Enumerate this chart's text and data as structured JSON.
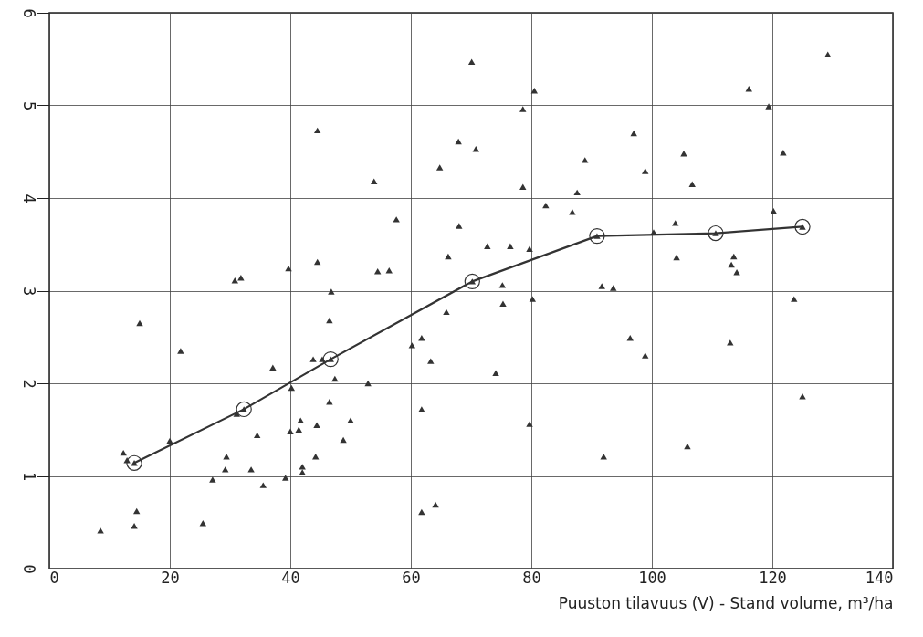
{
  "chart_data": {
    "type": "scatter",
    "xlabel": "Puuston tilavuus (V) - Stand volume, m³/ha",
    "xlim": [
      0,
      140
    ],
    "xticks": [
      0,
      20,
      40,
      60,
      80,
      100,
      120,
      140
    ],
    "ylim": [
      0,
      6
    ],
    "yticks": [
      0,
      1,
      2,
      3,
      4,
      5,
      6
    ],
    "grid": true,
    "series": [
      {
        "marker": "triangle",
        "color": "#333333",
        "x": [
          8.5,
          12.3,
          12.9,
          14.1,
          14.5,
          14.1,
          15,
          20,
          21.8,
          25.5,
          27.1,
          29.4,
          29.2,
          30.8,
          31.8,
          31.1,
          32.3,
          33.5,
          34.5,
          35.5,
          37.1,
          39.2,
          39.7,
          40.2,
          40,
          41.4,
          41.7,
          42,
          42,
          43.8,
          44.4,
          44.5,
          44.5,
          44.2,
          45.3,
          46.7,
          46.5,
          46.5,
          46.8,
          47.4,
          48.8,
          50,
          52.9,
          53.9,
          54.5,
          56.4,
          57.6,
          60.2,
          61.8,
          61.8,
          61.8,
          63.3,
          64.1,
          64.8,
          65.9,
          66.2,
          67.9,
          68,
          70.1,
          70.2,
          70.8,
          72.7,
          74.1,
          75.2,
          75.3,
          76.5,
          78.6,
          78.6,
          79.7,
          79.7,
          80.2,
          80.5,
          82.4,
          86.8,
          87.6,
          88.9,
          90.9,
          92,
          91.7,
          93.6,
          96.4,
          97,
          98.9,
          98.9,
          100.3,
          103.9,
          104.1,
          105.3,
          105.9,
          106.7,
          110.6,
          113,
          113.6,
          113.2,
          114.1,
          116.1,
          119.4,
          120.2,
          121.8,
          123.6,
          125,
          125,
          129.2
        ],
        "values": [
          0.41,
          1.25,
          1.17,
          1.14,
          0.62,
          0.46,
          2.65,
          1.38,
          2.35,
          0.49,
          0.96,
          1.21,
          1.07,
          3.11,
          3.14,
          1.67,
          1.72,
          1.07,
          1.44,
          0.9,
          2.17,
          0.98,
          3.24,
          1.95,
          1.48,
          1.5,
          1.6,
          1.1,
          1.04,
          2.26,
          1.55,
          3.31,
          4.73,
          1.21,
          2.26,
          2.26,
          1.8,
          2.68,
          2.99,
          2.05,
          1.39,
          1.6,
          2.0,
          4.18,
          3.21,
          3.22,
          3.77,
          2.41,
          2.49,
          1.72,
          0.61,
          2.24,
          0.69,
          4.33,
          2.77,
          3.37,
          4.61,
          3.7,
          5.47,
          3.1,
          4.53,
          3.48,
          2.11,
          3.06,
          2.86,
          3.48,
          4.12,
          4.96,
          3.45,
          1.56,
          2.91,
          5.16,
          3.92,
          3.85,
          4.06,
          4.41,
          3.59,
          1.21,
          3.05,
          3.03,
          2.49,
          4.7,
          4.29,
          2.3,
          3.63,
          3.73,
          3.36,
          4.48,
          1.32,
          4.15,
          3.62,
          2.44,
          3.37,
          3.28,
          3.2,
          5.18,
          4.99,
          3.86,
          4.49,
          2.91,
          3.69,
          1.86,
          5.55
        ]
      },
      {
        "type": "line",
        "marker": "circle",
        "color": "#333333",
        "x": [
          14.1,
          32.3,
          46.7,
          70.2,
          90.9,
          110.6,
          125
        ],
        "values": [
          1.14,
          1.72,
          2.26,
          3.1,
          3.59,
          3.62,
          3.69
        ]
      }
    ]
  }
}
